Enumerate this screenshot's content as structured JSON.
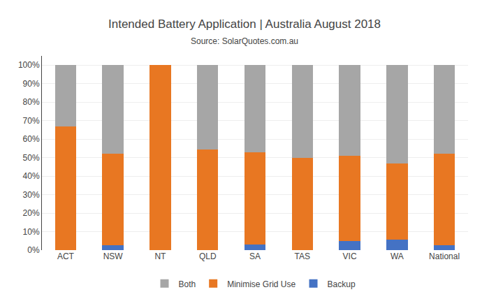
{
  "chart_data": {
    "type": "bar",
    "stacked": true,
    "title": "Intended Battery Application | Australia August 2018",
    "subtitle": "Source: SolarQuotes.com.au",
    "categories": [
      "ACT",
      "NSW",
      "NT",
      "QLD",
      "SA",
      "TAS",
      "VIC",
      "WA",
      "National"
    ],
    "series": [
      {
        "name": "Backup",
        "color": "#4472c4",
        "values": [
          0.0,
          2.5,
          0.0,
          0.0,
          3.0,
          0.0,
          5.0,
          5.5,
          2.5
        ]
      },
      {
        "name": "Minimise Grid Use",
        "color": "#e87722",
        "values": [
          67.0,
          49.5,
          100.0,
          54.5,
          50.0,
          50.0,
          46.0,
          41.5,
          49.5
        ]
      },
      {
        "name": "Both",
        "color": "#a6a6a6",
        "values": [
          33.0,
          48.0,
          0.0,
          45.5,
          47.0,
          50.0,
          49.0,
          53.0,
          48.0
        ]
      }
    ],
    "ylim": [
      0,
      105
    ],
    "yticks": [
      {
        "value": 0,
        "label": "0%"
      },
      {
        "value": 10,
        "label": "10%"
      },
      {
        "value": 20,
        "label": "20%"
      },
      {
        "value": 30,
        "label": "30%"
      },
      {
        "value": 40,
        "label": "40%"
      },
      {
        "value": 50,
        "label": "50%"
      },
      {
        "value": 60,
        "label": "60%"
      },
      {
        "value": 70,
        "label": "70%"
      },
      {
        "value": 80,
        "label": "80%"
      },
      {
        "value": 90,
        "label": "90%"
      },
      {
        "value": 100,
        "label": "100%"
      }
    ],
    "grid": true,
    "legend": "bottom"
  }
}
